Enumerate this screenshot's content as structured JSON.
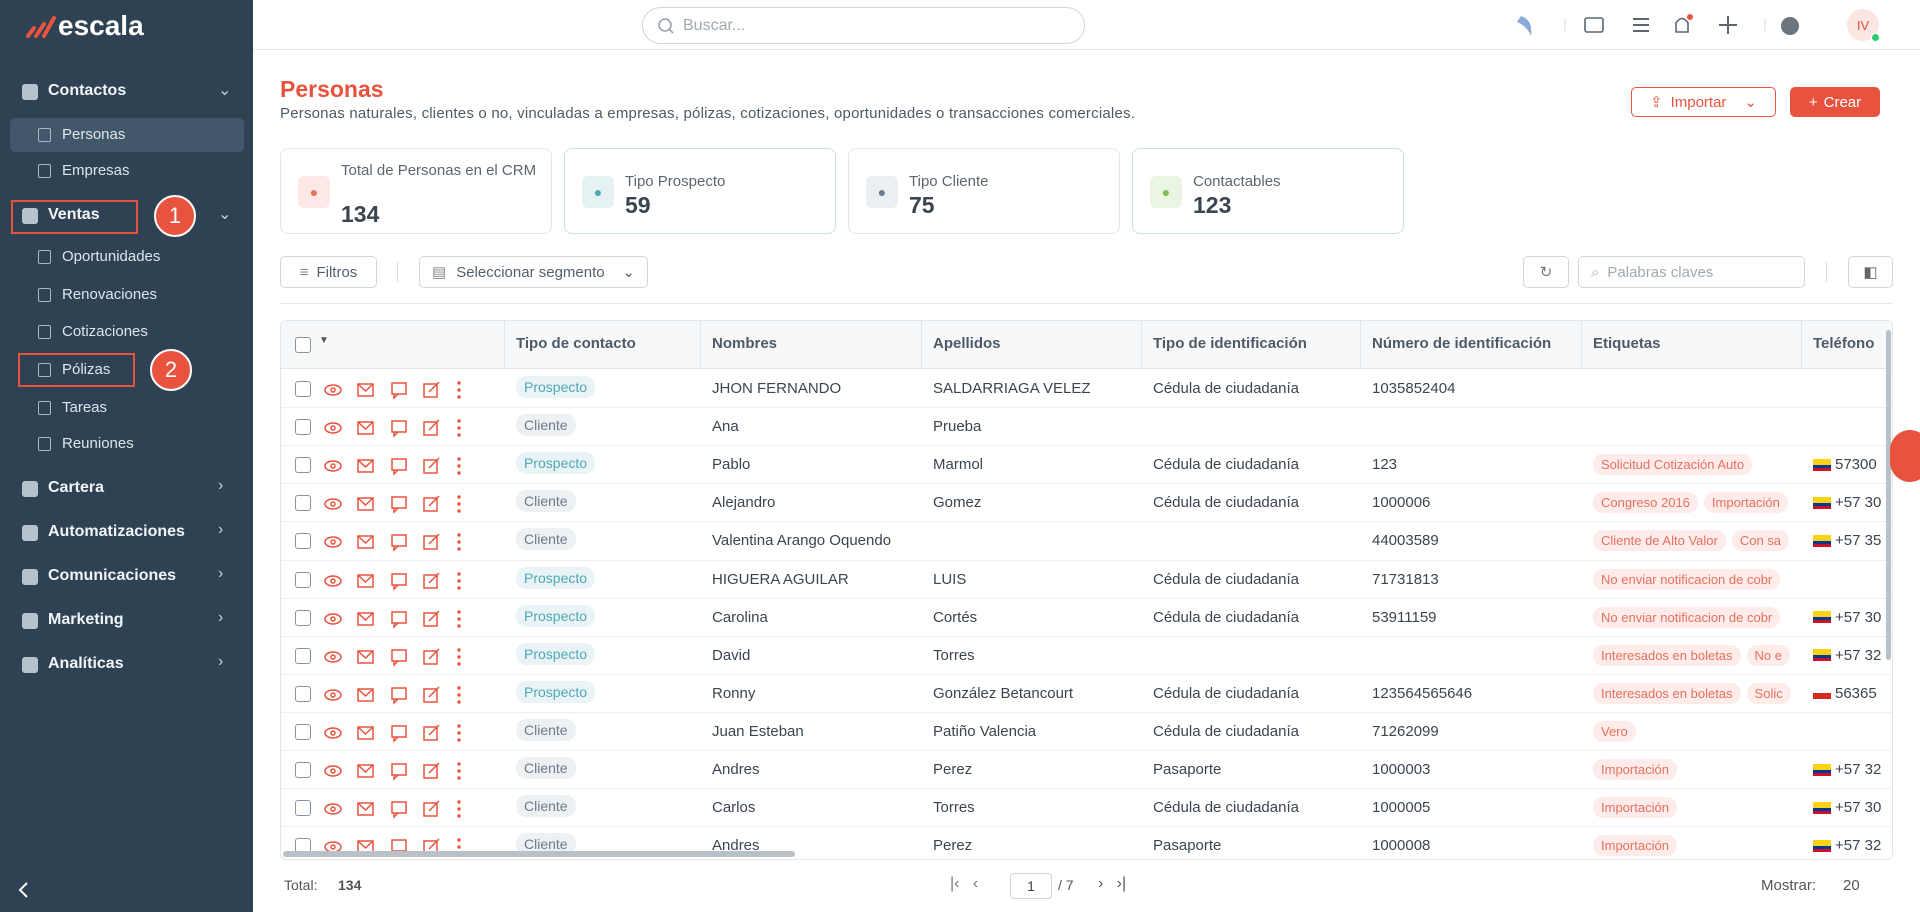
{
  "sidebar": {
    "brand": "escala",
    "sections": [
      {
        "label": "Contactos",
        "items": [
          "Personas",
          "Empresas"
        ]
      },
      {
        "label": "Ventas",
        "items": [
          "Oportunidades",
          "Renovaciones",
          "Cotizaciones",
          "Pólizas",
          "Tareas",
          "Reuniones"
        ]
      },
      {
        "label": "Cartera"
      },
      {
        "label": "Automatizaciones"
      },
      {
        "label": "Comunicaciones"
      },
      {
        "label": "Marketing"
      },
      {
        "label": "Analíticas"
      }
    ],
    "annotations": [
      "1",
      "2"
    ]
  },
  "header": {
    "search": "Buscar...",
    "avatar": "IV"
  },
  "page": {
    "title": "Personas",
    "subtitle": "Personas naturales, clientes o no, vinculadas a empresas, pólizas, cotizaciones, oportunidades o transacciones comerciales.",
    "import": "Importar",
    "create": "Crear"
  },
  "stats": [
    {
      "label": "Total de Personas en el CRM",
      "value": "134"
    },
    {
      "label": "Tipo Prospecto",
      "value": "59"
    },
    {
      "label": "Tipo Cliente",
      "value": "75"
    },
    {
      "label": "Contactables",
      "value": "123"
    }
  ],
  "toolbar": {
    "filters": "Filtros",
    "segment": "Seleccionar segmento",
    "keywords": "Palabras claves"
  },
  "table": {
    "columns": [
      "Tipo de contacto",
      "Nombres",
      "Apellidos",
      "Tipo de identificación",
      "Número de identificación",
      "Etiquetas",
      "Teléfono"
    ],
    "rows": [
      {
        "type": "Prospecto",
        "first": "JHON FERNANDO",
        "last": "SALDARRIAGA VELEZ",
        "id_type": "Cédula de ciudadanía",
        "id_number": "1035852404"
      },
      {
        "type": "Cliente",
        "first": "Ana",
        "last": "Prueba"
      },
      {
        "type": "Prospecto",
        "first": "Pablo",
        "last": "Marmol",
        "id_type": "Cédula de ciudadanía",
        "id_number": "123",
        "tags": [
          "Solicitud Cotización Auto"
        ],
        "phone": "57300",
        "flag": "co"
      },
      {
        "type": "Cliente",
        "first": "Alejandro",
        "last": "Gomez",
        "id_type": "Cédula de ciudadanía",
        "id_number": "1000006",
        "tags": [
          "Congreso 2016",
          "Importación"
        ],
        "phone": "+57 30",
        "flag": "co"
      },
      {
        "type": "Cliente",
        "first": "Valentina Arango Oquendo",
        "id_number": "44003589",
        "tags": [
          "Cliente de Alto Valor",
          "Con sa"
        ],
        "phone": "+57 35",
        "flag": "co"
      },
      {
        "type": "Prospecto",
        "first": "HIGUERA AGUILAR",
        "last": "LUIS",
        "id_type": "Cédula de ciudadanía",
        "id_number": "71731813",
        "tags": [
          "No enviar notificacion de cobr"
        ]
      },
      {
        "type": "Prospecto",
        "first": "Carolina",
        "last": "Cortés",
        "id_type": "Cédula de ciudadanía",
        "id_number": "53911159",
        "tags": [
          "No enviar notificacion de cobr"
        ],
        "phone": "+57 30",
        "flag": "co"
      },
      {
        "type": "Prospecto",
        "first": "David",
        "last": "Torres",
        "tags": [
          "Interesados en boletas",
          "No e"
        ],
        "phone": "+57 32",
        "flag": "co"
      },
      {
        "type": "Prospecto",
        "first": "Ronny",
        "last": "González Betancourt",
        "id_type": "Cédula de ciudadanía",
        "id_number": "123564565646",
        "tags": [
          "Interesados en boletas",
          "Solic"
        ],
        "phone": "56365",
        "flag": "cl"
      },
      {
        "type": "Cliente",
        "first": "Juan Esteban",
        "last": "Patiño Valencia",
        "id_type": "Cédula de ciudadanía",
        "id_number": "71262099",
        "tags": [
          "Vero"
        ]
      },
      {
        "type": "Cliente",
        "first": "Andres",
        "last": "Perez",
        "id_type": "Pasaporte",
        "id_number": "1000003",
        "tags": [
          "Importación"
        ],
        "phone": "+57 32",
        "flag": "co"
      },
      {
        "type": "Cliente",
        "first": "Carlos",
        "last": "Torres",
        "id_type": "Cédula de ciudadanía",
        "id_number": "1000005",
        "tags": [
          "Importación"
        ],
        "phone": "+57 30",
        "flag": "co"
      },
      {
        "type": "Cliente",
        "first": "Andres",
        "last": "Perez",
        "id_type": "Pasaporte",
        "id_number": "1000008",
        "tags": [
          "Importación"
        ],
        "phone": "+57 32",
        "flag": "co"
      }
    ]
  },
  "footer": {
    "total_label": "Total:",
    "total": "134",
    "page": "1",
    "pages": "/ 7",
    "show_label": "Mostrar:",
    "show": "20"
  }
}
